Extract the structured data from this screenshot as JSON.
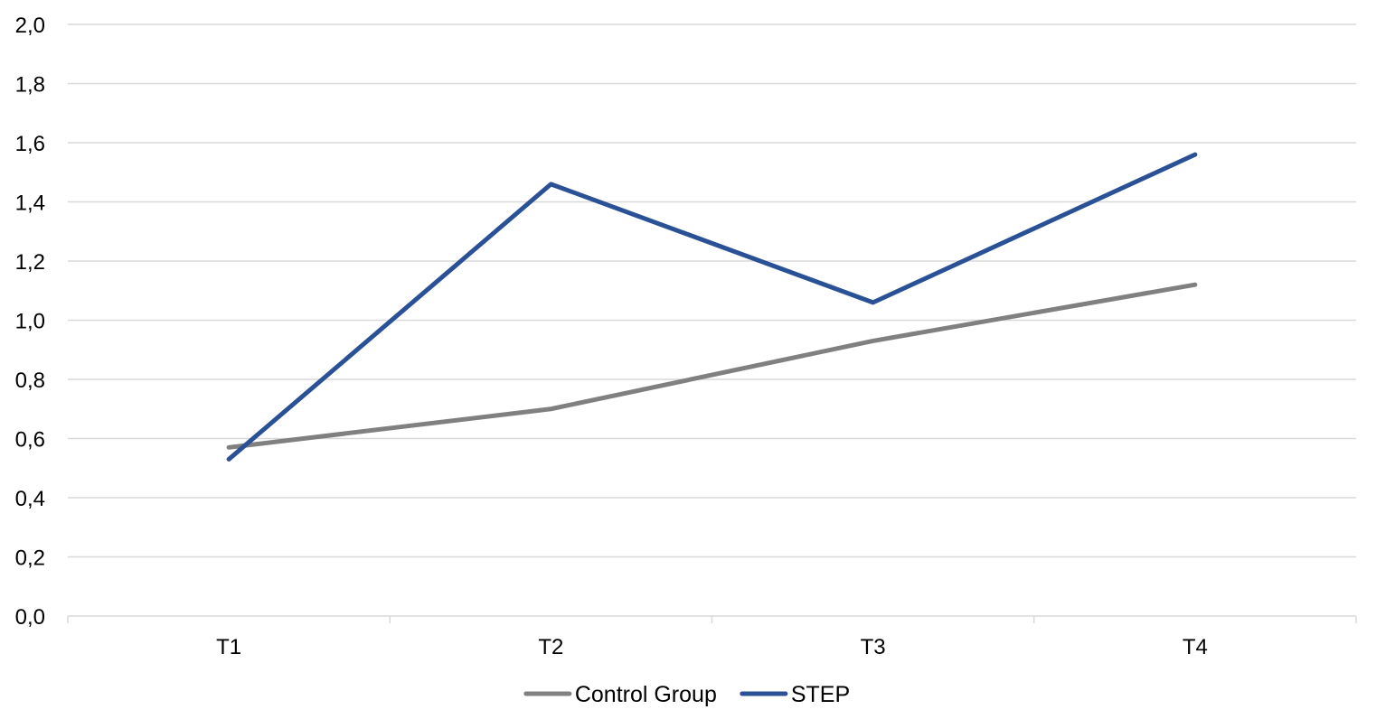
{
  "chart_data": {
    "type": "line",
    "title": "",
    "xlabel": "",
    "ylabel": "",
    "categories": [
      "T1",
      "T2",
      "T3",
      "T4"
    ],
    "ylim": [
      0,
      2
    ],
    "yticks": [
      "0,0",
      "0,2",
      "0,4",
      "0,6",
      "0,8",
      "1,0",
      "1,2",
      "1,4",
      "1,6",
      "1,8",
      "2,0"
    ],
    "grid": true,
    "legend_position": "bottom",
    "series": [
      {
        "name": "Control Group",
        "color": "#808080",
        "values": [
          0.57,
          0.7,
          0.93,
          1.12
        ]
      },
      {
        "name": "STEP",
        "color": "#2a5196",
        "values": [
          0.53,
          1.46,
          1.06,
          1.56
        ]
      }
    ]
  }
}
